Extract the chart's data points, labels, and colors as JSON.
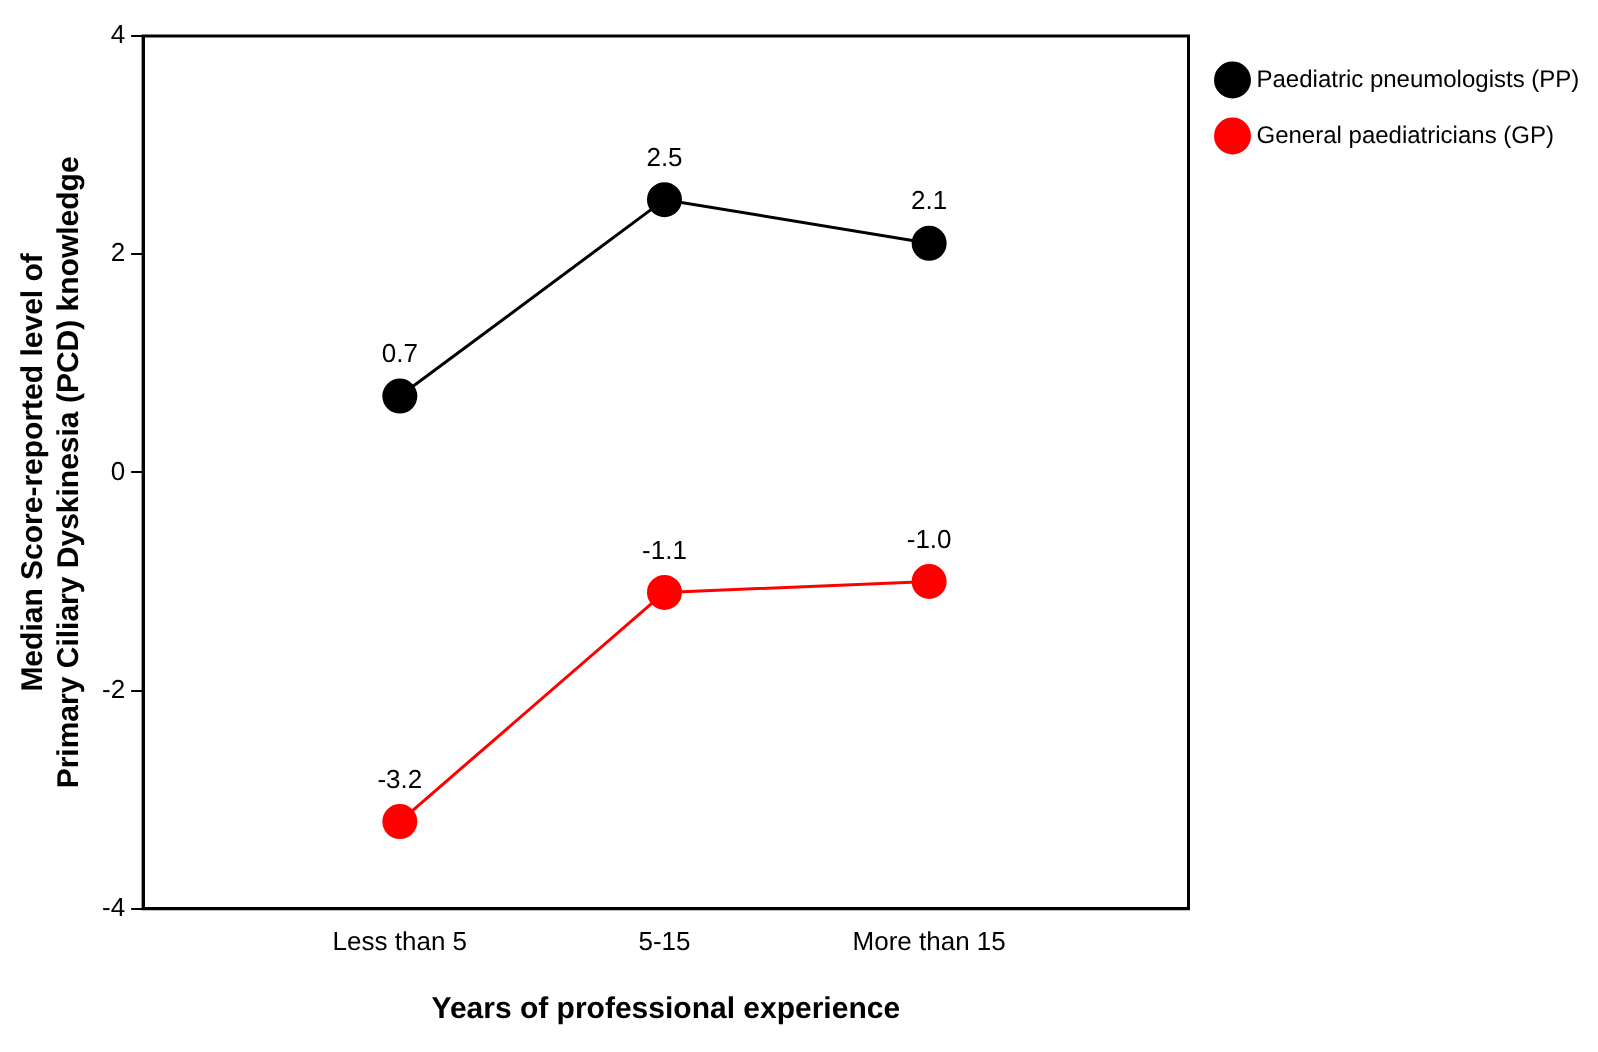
{
  "chart_data": {
    "type": "line",
    "xlabel": "Years of professional experience",
    "ylabel": "Median Score-reported level of\nPrimary Ciliary Dyskinesia (PCD) knowledge",
    "categories": [
      "Less than 5",
      "5-15",
      "More than 15"
    ],
    "series": [
      {
        "name": "Paediatric pneumologists (PP)",
        "color": "#000000",
        "values": [
          0.7,
          2.5,
          2.1
        ],
        "value_labels": [
          "0.7",
          "2.5",
          "2.1"
        ]
      },
      {
        "name": "General paediatricians (GP)",
        "color": "#ff0000",
        "values": [
          -3.2,
          -1.1,
          -1.0
        ],
        "value_labels": [
          "-3.2",
          "-1.1",
          "-1.0"
        ]
      }
    ],
    "ylim": [
      -4,
      4
    ],
    "yticks": [
      -4,
      -2,
      0,
      2,
      4
    ],
    "grid": false,
    "legend": "right",
    "marker": "circle",
    "line_style": "solid"
  }
}
